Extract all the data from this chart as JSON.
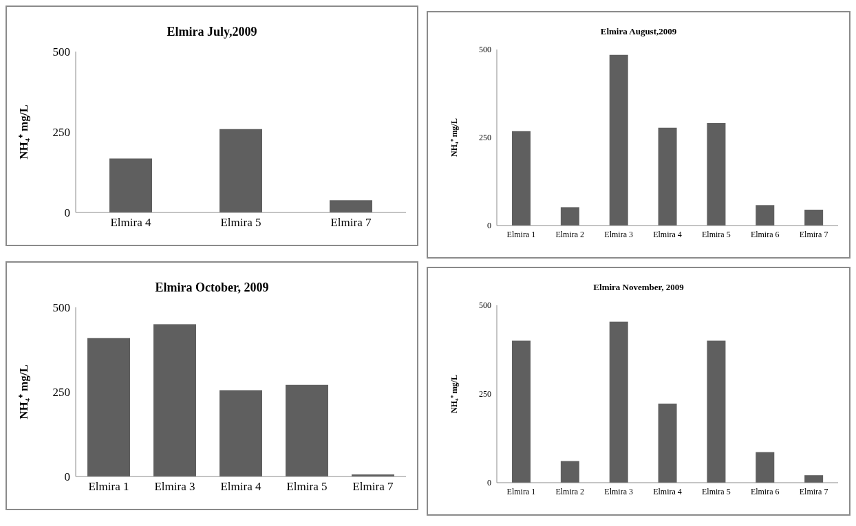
{
  "chart_data": [
    {
      "type": "bar",
      "title": "Elmira  July,2009",
      "ylabel": "NH₄⁺ mg/L",
      "categories": [
        "Elmira 4",
        "Elmira 5",
        "Elmira 7"
      ],
      "values": [
        168,
        259,
        38
      ],
      "color": "#5f5f5f",
      "ylim": [
        0,
        500
      ],
      "yticks": [
        0,
        250,
        500
      ]
    },
    {
      "type": "bar",
      "title": "Elmira  August,2009",
      "ylabel": "NH₄⁺ mg/L",
      "categories": [
        "Elmira 1",
        "Elmira 2",
        "Elmira 3",
        "Elmira 4",
        "Elmira 5",
        "Elmira 6",
        "Elmira 7"
      ],
      "values": [
        268,
        52,
        485,
        278,
        291,
        58,
        45
      ],
      "color": "#5f5f5f",
      "ylim": [
        0,
        500
      ],
      "yticks": [
        0,
        250,
        500
      ]
    },
    {
      "type": "bar",
      "title": "Elmira  October, 2009",
      "ylabel": "NH₄⁺ mg/L",
      "categories": [
        "Elmira 1",
        "Elmira 3",
        "Elmira 4",
        "Elmira 5",
        "Elmira 7"
      ],
      "values": [
        409,
        450,
        255,
        271,
        6
      ],
      "color": "#5f5f5f",
      "ylim": [
        0,
        500
      ],
      "yticks": [
        0,
        250,
        500
      ]
    },
    {
      "type": "bar",
      "title": "Elmira  November, 2009",
      "ylabel": "NH₄⁺ mg/L",
      "categories": [
        "Elmira 1",
        "Elmira 2",
        "Elmira 3",
        "Elmira 4",
        "Elmira 5",
        "Elmira 6",
        "Elmira 7"
      ],
      "values": [
        400,
        61,
        454,
        223,
        400,
        86,
        21
      ],
      "color": "#5f5f5f",
      "ylim": [
        0,
        500
      ],
      "yticks": [
        0,
        250,
        500
      ]
    }
  ]
}
